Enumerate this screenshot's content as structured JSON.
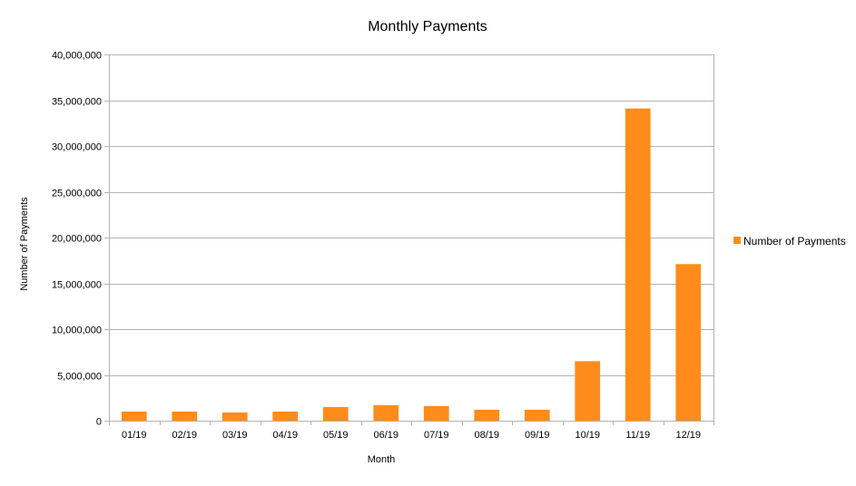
{
  "chart_data": {
    "type": "bar",
    "title": "Monthly Payments",
    "xlabel": "Month",
    "ylabel": "Number of Payments",
    "categories": [
      "01/19",
      "02/19",
      "03/19",
      "04/19",
      "05/19",
      "06/19",
      "07/19",
      "08/19",
      "09/19",
      "10/19",
      "11/19",
      "12/19"
    ],
    "series": [
      {
        "name": "Number of Payments",
        "color": "#ff8c1a",
        "values": [
          1000000,
          1000000,
          900000,
          1000000,
          1500000,
          1700000,
          1600000,
          1200000,
          1200000,
          6500000,
          34100000,
          17100000
        ]
      }
    ],
    "ylim": [
      0,
      40000000
    ],
    "yticks": [
      0,
      5000000,
      10000000,
      15000000,
      20000000,
      25000000,
      30000000,
      35000000,
      40000000
    ],
    "ytick_labels": [
      "0",
      "5,000,000",
      "10,000,000",
      "15,000,000",
      "20,000,000",
      "25,000,000",
      "30,000,000",
      "35,000,000",
      "40,000,000"
    ],
    "grid": true,
    "legend_position": "right",
    "gridline_color": "#b3b3b3"
  }
}
